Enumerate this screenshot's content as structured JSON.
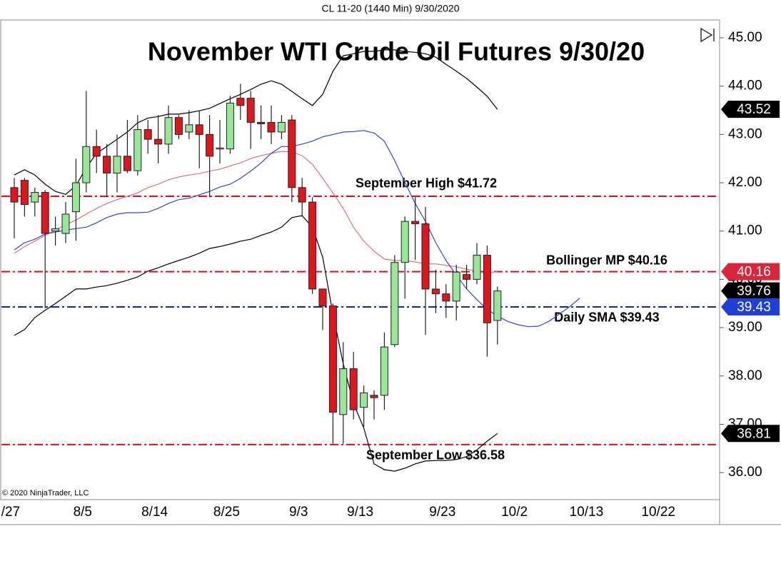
{
  "chart_data": {
    "type": "candlestick",
    "header": "CL 11-20 (1440 Min)  9/30/2020",
    "title": "November WTI Crude Oil Futures 9/30/20",
    "copyright": "© 2020 NinjaTrader, LLC",
    "categories": [
      "/27",
      null,
      null,
      null,
      null,
      null,
      null,
      "8/5",
      null,
      null,
      null,
      null,
      null,
      null,
      "8/14",
      null,
      null,
      null,
      null,
      null,
      null,
      "8/25",
      null,
      null,
      null,
      null,
      null,
      null,
      "9/3",
      null,
      null,
      null,
      null,
      null,
      "9/13",
      null,
      null,
      null,
      null,
      null,
      null,
      null,
      "9/23",
      null,
      null,
      null,
      null,
      null,
      null,
      "10/2",
      null,
      null,
      null,
      null,
      null,
      null,
      "10/13",
      null,
      null,
      null,
      null,
      null,
      null,
      "10/22",
      null,
      null,
      null,
      null,
      null
    ],
    "open": [
      41.9,
      42.05,
      41.6,
      41.8,
      41.0,
      40.95,
      41.4,
      42.0,
      42.75,
      42.55,
      42.2,
      42.55,
      42.25,
      43.1,
      42.9,
      42.8,
      43.35,
      43.05,
      43.2,
      43.0,
      42.7,
      42.7,
      43.75,
      43.75,
      43.25,
      43.25,
      43.05,
      43.3,
      41.9,
      41.6,
      39.8,
      39.45,
      37.2,
      38.15,
      37.35,
      37.6,
      37.6,
      38.65,
      40.35,
      41.2,
      41.15,
      39.8,
      39.7,
      39.55,
      40.1,
      40.0,
      40.5,
      39.15,
      null,
      null,
      null,
      null,
      null,
      null,
      null,
      null,
      null,
      null,
      null,
      null,
      null,
      null,
      null,
      null,
      null,
      null,
      null,
      null,
      null
    ],
    "high": [
      42.1,
      42.1,
      41.9,
      41.85,
      41.3,
      41.6,
      42.5,
      43.9,
      43.1,
      42.8,
      43.0,
      43.3,
      43.4,
      43.3,
      43.4,
      43.6,
      43.4,
      43.5,
      43.5,
      43.4,
      43.3,
      43.8,
      44.05,
      43.9,
      43.6,
      43.6,
      43.4,
      43.4,
      42.1,
      41.7,
      39.8,
      39.5,
      38.7,
      38.5,
      37.8,
      37.7,
      38.9,
      40.5,
      41.3,
      41.7,
      41.5,
      40.2,
      39.9,
      40.3,
      40.3,
      40.75,
      40.7,
      39.85,
      null,
      null,
      null,
      null,
      null,
      null,
      null,
      null,
      null,
      null,
      null,
      null,
      null,
      null,
      null,
      null,
      null,
      null,
      null,
      null,
      null
    ],
    "low": [
      40.85,
      41.3,
      41.3,
      39.4,
      40.7,
      40.75,
      40.8,
      41.8,
      42.2,
      41.7,
      41.8,
      42.2,
      42.15,
      42.6,
      42.4,
      42.6,
      42.9,
      42.9,
      42.3,
      41.7,
      42.4,
      42.6,
      43.3,
      42.7,
      42.9,
      42.8,
      42.9,
      41.6,
      41.3,
      39.7,
      38.95,
      36.6,
      36.6,
      37.1,
      36.95,
      37.1,
      37.3,
      38.6,
      39.6,
      40.4,
      38.85,
      39.3,
      39.2,
      39.15,
      39.8,
      39.9,
      38.4,
      38.65,
      null,
      null,
      null,
      null,
      null,
      null,
      null,
      null,
      null,
      null,
      null,
      null,
      null,
      null,
      null,
      null,
      null,
      null,
      null,
      null,
      null
    ],
    "close": [
      41.6,
      41.55,
      41.8,
      40.95,
      41.05,
      41.35,
      42.0,
      42.75,
      42.55,
      42.2,
      42.55,
      42.25,
      43.1,
      42.9,
      42.8,
      43.35,
      43.0,
      43.2,
      43.0,
      42.55,
      42.72,
      43.65,
      43.6,
      43.25,
      43.22,
      43.05,
      43.25,
      41.9,
      41.6,
      39.8,
      39.45,
      37.25,
      38.15,
      37.3,
      37.65,
      37.55,
      38.6,
      40.35,
      41.2,
      41.15,
      39.8,
      39.7,
      39.55,
      40.15,
      40.0,
      40.5,
      39.1,
      39.76,
      null,
      null,
      null,
      null,
      null,
      null,
      null,
      null,
      null,
      null,
      null,
      null,
      null,
      null,
      null,
      null,
      null,
      null,
      null,
      null,
      null
    ],
    "up_color": "#98e698",
    "down_color": "#e0161b",
    "lines": [
      {
        "color": "#000000",
        "values": [
          42.16,
          42.27,
          42.16,
          41.97,
          41.82,
          41.76,
          41.94,
          42.31,
          42.61,
          42.75,
          42.9,
          43.05,
          43.24,
          43.34,
          43.37,
          43.42,
          43.42,
          43.45,
          43.49,
          43.54,
          43.64,
          43.74,
          43.83,
          43.93,
          44.04,
          44.11,
          44.04,
          43.89,
          43.74,
          43.6,
          43.83,
          44.31,
          44.63,
          44.67,
          44.72,
          44.72,
          44.75,
          44.75,
          44.72,
          44.7,
          44.67,
          44.6,
          44.45,
          44.31,
          44.16,
          43.98,
          43.79,
          43.52,
          null,
          null,
          null,
          null,
          null,
          null,
          null,
          null,
          null,
          null,
          null,
          null,
          null,
          null,
          null,
          null,
          null,
          null,
          null,
          null,
          null
        ]
      },
      {
        "color": "#000000",
        "values": [
          38.84,
          38.96,
          39.21,
          39.36,
          39.5,
          39.65,
          39.8,
          39.8,
          39.84,
          39.87,
          39.92,
          39.98,
          40.05,
          40.17,
          40.24,
          40.32,
          40.39,
          40.46,
          40.54,
          40.64,
          40.68,
          40.73,
          40.79,
          40.83,
          40.91,
          40.98,
          41.08,
          41.28,
          41.32,
          41.08,
          40.46,
          39.28,
          38.25,
          37.43,
          36.92,
          36.18,
          36.06,
          36.03,
          36.09,
          36.18,
          36.24,
          36.25,
          36.25,
          36.27,
          36.33,
          36.47,
          36.65,
          36.81,
          null,
          null,
          null,
          null,
          null,
          null,
          null,
          null,
          null,
          null,
          null,
          null,
          null,
          null,
          null,
          null,
          null,
          null,
          null,
          null,
          null
        ]
      },
      {
        "color": "#e0707a",
        "values": [
          40.54,
          40.68,
          40.79,
          40.91,
          41.02,
          41.13,
          41.23,
          41.35,
          41.47,
          41.57,
          41.65,
          41.72,
          41.79,
          41.9,
          41.97,
          42.06,
          42.12,
          42.16,
          42.19,
          42.24,
          42.28,
          42.35,
          42.41,
          42.5,
          42.56,
          42.61,
          42.65,
          42.64,
          42.56,
          42.38,
          42.09,
          41.79,
          41.47,
          41.08,
          40.79,
          40.58,
          40.42,
          40.39,
          40.39,
          40.36,
          40.32,
          40.32,
          40.29,
          40.26,
          40.21,
          40.17,
          40.12,
          40.16,
          null,
          null,
          null,
          null,
          null,
          null,
          null,
          null,
          null,
          null,
          null,
          null,
          null,
          null,
          null,
          null,
          null,
          null,
          null,
          null,
          null
        ]
      },
      {
        "color": "#3344dd",
        "values": [
          40.61,
          40.76,
          40.83,
          40.94,
          40.98,
          41.02,
          41.05,
          41.08,
          41.17,
          41.28,
          41.35,
          41.38,
          41.38,
          41.39,
          41.47,
          41.57,
          41.65,
          41.68,
          41.75,
          41.82,
          41.91,
          41.97,
          42.09,
          42.24,
          42.41,
          42.61,
          42.75,
          42.75,
          42.8,
          42.86,
          42.95,
          43.0,
          43.05,
          43.06,
          43.08,
          43.03,
          42.86,
          42.46,
          42.01,
          41.57,
          41.2,
          40.76,
          40.39,
          40.09,
          39.8,
          39.58,
          39.38,
          39.24,
          39.13,
          39.06,
          39.02,
          39.03,
          39.13,
          39.28,
          39.43,
          39.61,
          null,
          null,
          null,
          null,
          null,
          null,
          null,
          null,
          null,
          null,
          null,
          null,
          null
        ]
      }
    ],
    "hlines": [
      {
        "value": 41.72,
        "color": "#dd1111",
        "label": "September High $41.72"
      },
      {
        "value": 40.16,
        "color": "#dd1111",
        "label": "Bollinger MP $40.16"
      },
      {
        "value": 39.43,
        "color": "#1122cc",
        "label": "Daily SMA $39.43"
      },
      {
        "value": 36.58,
        "color": "#dd1111",
        "label": "September Low $36.58"
      }
    ],
    "price_markers": [
      {
        "value": 43.52,
        "color": "#000000"
      },
      {
        "value": 40.16,
        "color": "#d9263a"
      },
      {
        "value": 39.76,
        "color": "#000000"
      },
      {
        "value": 39.43,
        "color": "#1f3fdb"
      },
      {
        "value": 36.81,
        "color": "#000000"
      }
    ],
    "ylim": [
      35.44,
      45.34
    ],
    "yticks": [
      {
        "value": 36,
        "label": "36.00"
      },
      {
        "value": 37,
        "label": "37.00"
      },
      {
        "value": 38,
        "label": "38.00"
      },
      {
        "value": 39,
        "label": "39.00"
      },
      {
        "value": 40,
        "label": "40.00"
      },
      {
        "value": 41,
        "label": "41.00"
      },
      {
        "value": 42,
        "label": "42.00"
      },
      {
        "value": 43,
        "label": "43.00"
      },
      {
        "value": 44,
        "label": "44.00"
      },
      {
        "value": 45,
        "label": "45.00"
      }
    ]
  }
}
